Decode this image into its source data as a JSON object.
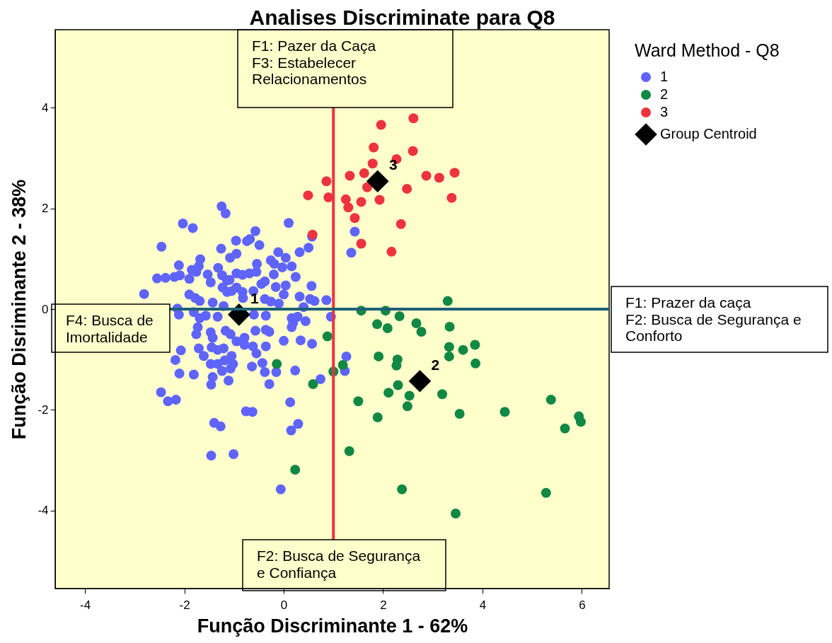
{
  "chart_data": {
    "type": "scatter",
    "title": "Analises Discriminate para Q8",
    "xlabel": "Função Discriminante 1 - 62%",
    "ylabel": "Função Disriminante 2 - 38%",
    "legend_title": "Ward Method - Q8",
    "xlim": [
      -4.6,
      6.55
    ],
    "ylim": [
      -5.55,
      5.55
    ],
    "xticks": [
      -4,
      -2,
      0,
      2,
      4,
      6
    ],
    "yticks": [
      -4,
      -2,
      0,
      2,
      4
    ],
    "grid": false,
    "legend": "top right",
    "marker": "circle",
    "series": [
      {
        "name": "1",
        "color": "#5f64ff",
        "x": [
          -1.25,
          -1.17,
          -2.03,
          -1.83,
          0.1,
          -0.57,
          -0.96,
          -0.74,
          -0.68,
          -0.49,
          -2.46,
          -1.26,
          -0.95,
          -1.08,
          -0.11,
          0.04,
          0.32,
          0.5,
          0.57,
          -1.68,
          -1.71,
          -1.85,
          -1.76,
          -2.11,
          -2.55,
          -2.38,
          -2.2,
          -2.09,
          -1.9,
          -1.53,
          -1.47,
          -1.32,
          -1.24,
          -1.14,
          -1.09,
          -0.95,
          -0.83,
          -0.69,
          -0.55,
          -0.54,
          -0.26,
          -0.19,
          -0.03,
          0.16,
          -0.2,
          0.24,
          -0.45,
          -0.38,
          -0.16,
          0.04,
          0.56,
          0.0,
          0.32,
          0.53,
          0.62,
          0.86,
          -2.81,
          -1.9,
          -1.78,
          -1.69,
          -1.43,
          -1.23,
          -1.14,
          -1.05,
          -0.95,
          -0.83,
          -0.82,
          -0.61,
          -0.38,
          -0.26,
          -0.1,
          -1.21,
          -2.14,
          0.4,
          -0.36,
          0.16,
          0.28,
          0.19,
          0.16,
          0.44,
          0.95,
          -0.36,
          -0.29,
          0.0,
          0.34,
          0.57,
          -0.36,
          -0.43,
          -0.38,
          -0.15,
          0.23,
          -0.29,
          0.74,
          1.26,
          1.23,
          0.13,
          0.29,
          0.15,
          -0.06,
          -2.11,
          -1.81,
          -1.69,
          -1.57,
          -1.33,
          -1.17,
          -1.07,
          -0.95,
          -0.79,
          -0.79,
          -0.62,
          -0.57,
          -0.6,
          -0.55,
          -0.64,
          -1.73,
          -1.76,
          -1.47,
          -1.43,
          -1.71,
          -1.61,
          -1.45,
          -1.33,
          -1.21,
          -1.47,
          -1.33,
          -1.19,
          -1.05,
          -1.02,
          -1.07,
          -1.24,
          -2.07,
          -2.18,
          -2.1,
          -1.81,
          -1.43,
          -1.46,
          -1.11,
          -2.47,
          -2.33,
          -2.17,
          -0.76,
          -0.63,
          -1.4,
          -1.27,
          -1.46,
          -1.01,
          1.43,
          1.36
        ],
        "values": [
          2.04,
          1.9,
          1.7,
          1.61,
          1.71,
          1.55,
          1.36,
          1.35,
          1.39,
          1.27,
          1.24,
          1.2,
          1.1,
          1.02,
          1.13,
          1.02,
          1.13,
          1.22,
          1.44,
          0.99,
          0.85,
          0.78,
          0.74,
          0.87,
          0.61,
          0.62,
          0.64,
          0.67,
          0.6,
          0.69,
          0.53,
          0.82,
          0.67,
          0.57,
          0.58,
          0.71,
          0.68,
          0.71,
          0.74,
          0.9,
          0.97,
          0.9,
          0.83,
          0.85,
          0.69,
          0.64,
          0.5,
          0.55,
          0.44,
          0.47,
          0.46,
          0.29,
          0.25,
          0.2,
          0.16,
          0.18,
          0.3,
          0.29,
          0.22,
          0.16,
          0.13,
          0.43,
          0.34,
          0.36,
          0.43,
          0.34,
          0.22,
          0.36,
          0.2,
          0.15,
          0.11,
          0.06,
          0.01,
          0.04,
          -0.13,
          -0.18,
          -0.15,
          -0.27,
          -0.36,
          -0.24,
          -0.15,
          -0.41,
          -0.45,
          -0.63,
          -0.62,
          -0.69,
          -0.74,
          -1.07,
          -1.25,
          -1.25,
          -1.22,
          -1.49,
          -1.39,
          -0.94,
          -1.23,
          -1.85,
          -2.28,
          -2.41,
          -3.58,
          -0.11,
          -0.06,
          -0.18,
          -0.13,
          -0.15,
          -0.43,
          -0.5,
          -0.64,
          -0.57,
          -0.71,
          -0.74,
          -0.43,
          -0.11,
          -0.88,
          -1.14,
          -0.36,
          -0.5,
          -0.46,
          -0.57,
          -0.78,
          -0.93,
          -0.76,
          -0.81,
          -0.78,
          -1.09,
          -1.09,
          -1.02,
          -0.93,
          -1.09,
          -1.18,
          -1.23,
          -0.82,
          -1.01,
          -1.28,
          -1.3,
          -1.35,
          -1.5,
          -1.42,
          -1.65,
          -1.83,
          -1.8,
          -2.03,
          -2.04,
          -2.26,
          -2.33,
          -2.91,
          -2.88,
          1.54,
          1.12
        ]
      },
      {
        "name": "2",
        "color": "#118844",
        "x": [
          3.3,
          1.56,
          2.05,
          2.33,
          1.88,
          2.09,
          2.67,
          2.77,
          3.34,
          0.88,
          3.33,
          3.33,
          3.61,
          3.85,
          3.86,
          1.91,
          2.29,
          2.27,
          -0.14,
          1.19,
          1.0,
          0.59,
          2.3,
          2.11,
          2.53,
          2.49,
          3.19,
          1.5,
          1.89,
          3.54,
          4.45,
          5.38,
          5.94,
          5.98,
          5.66,
          1.32,
          0.23,
          2.38,
          5.28,
          3.46
        ],
        "values": [
          0.16,
          -0.03,
          -0.03,
          -0.14,
          -0.3,
          -0.38,
          -0.28,
          -0.45,
          -0.35,
          -0.54,
          -0.75,
          -0.94,
          -0.81,
          -0.71,
          -1.08,
          -0.94,
          -1.0,
          -1.12,
          -1.09,
          -1.11,
          -1.24,
          -1.49,
          -1.51,
          -1.66,
          -1.72,
          -1.93,
          -1.69,
          -1.83,
          -2.15,
          -2.08,
          -2.04,
          -1.8,
          -2.13,
          -2.24,
          -2.37,
          -2.82,
          -3.19,
          -3.58,
          -3.65,
          -4.06
        ]
      },
      {
        "name": "3",
        "color": "#ee3340",
        "x": [
          2.61,
          1.96,
          1.81,
          2.6,
          2.27,
          1.79,
          1.62,
          1.33,
          1.68,
          0.86,
          0.49,
          0.9,
          1.25,
          1.3,
          1.56,
          1.93,
          2.48,
          2.87,
          3.13,
          3.44,
          3.38,
          1.43,
          2.36,
          0.58,
          1.56,
          2.17
        ],
        "values": [
          3.79,
          3.66,
          3.21,
          3.14,
          2.98,
          2.89,
          2.7,
          2.65,
          2.42,
          2.54,
          2.26,
          2.22,
          2.18,
          2.02,
          2.13,
          2.17,
          2.39,
          2.65,
          2.61,
          2.71,
          2.21,
          1.81,
          1.69,
          1.48,
          1.3,
          1.14
        ]
      },
      {
        "name": "Group Centroid",
        "color": "#000000",
        "marker": "diamond",
        "x": [
          -0.9,
          2.74,
          1.89
        ],
        "values": [
          -0.11,
          -1.43,
          2.54
        ]
      }
    ],
    "ref_lines": [
      {
        "axis": "x",
        "value": 1,
        "color": "#ee3340"
      },
      {
        "axis": "y",
        "value": 0,
        "color": "#1e5f78"
      }
    ],
    "annotations": [
      "F1: Pazer da Caça\nF3: Estabelecer\nRelacionamentos",
      "F4: Busca de\nImortalidade",
      "F1: Prazer da caça\nF2: Busca de Segurança e\nConforto",
      "F2: Busca de Segurança\ne Confiança",
      {
        "text": "1",
        "x": -0.9,
        "y": -0.11
      },
      {
        "text": "2",
        "x": 2.74,
        "y": -1.43
      },
      {
        "text": "3",
        "x": 1.89,
        "y": 2.54
      }
    ]
  }
}
